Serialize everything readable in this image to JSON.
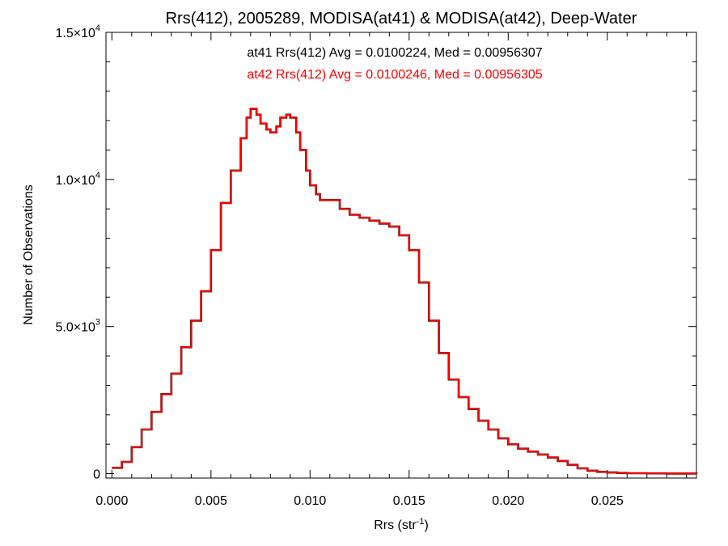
{
  "chart_data": {
    "type": "histogram",
    "title": "Rrs(412), 2005289, MODISA(at41) & MODISA(at42), Deep-Water",
    "xlabel": "Rrs (str",
    "xlabel_sup": "-1",
    "xlabel_suffix": ")",
    "ylabel": "Number of Observations",
    "xlim": [
      -0.0003,
      0.0295
    ],
    "ylim": [
      -150,
      15000
    ],
    "x_ticks": [
      {
        "value": 0.0,
        "label": "0.000"
      },
      {
        "value": 0.005,
        "label": "0.005"
      },
      {
        "value": 0.01,
        "label": "0.010"
      },
      {
        "value": 0.015,
        "label": "0.015"
      },
      {
        "value": 0.02,
        "label": "0.020"
      },
      {
        "value": 0.025,
        "label": "0.025"
      }
    ],
    "y_ticks": [
      {
        "value": 0,
        "mant": "0",
        "exp": ""
      },
      {
        "value": 5000,
        "mant": "5.0×10",
        "exp": "3"
      },
      {
        "value": 10000,
        "mant": "1.0×10",
        "exp": "4"
      },
      {
        "value": 15000,
        "mant": "1.5×10",
        "exp": "4"
      }
    ],
    "annotations": [
      {
        "text": "at41 Rrs(412) Avg = 0.0100224, Med = 0.00956307",
        "color": "#000000"
      },
      {
        "text": "at42 Rrs(412) Avg = 0.0100246, Med = 0.00956305",
        "color": "#ff0000"
      }
    ],
    "series": [
      {
        "color": "#000000",
        "x": [
          0.0,
          0.0005,
          0.001,
          0.0015,
          0.002,
          0.0025,
          0.003,
          0.0035,
          0.004,
          0.0045,
          0.005,
          0.0055,
          0.006,
          0.0065,
          0.0068,
          0.007,
          0.0073,
          0.0075,
          0.0078,
          0.008,
          0.0083,
          0.0085,
          0.0088,
          0.009,
          0.0093,
          0.0095,
          0.0098,
          0.01,
          0.0103,
          0.0105,
          0.011,
          0.0115,
          0.012,
          0.0125,
          0.013,
          0.0135,
          0.014,
          0.0145,
          0.015,
          0.0155,
          0.016,
          0.0165,
          0.017,
          0.0175,
          0.018,
          0.0185,
          0.019,
          0.0195,
          0.02,
          0.0205,
          0.021,
          0.0215,
          0.022,
          0.0225,
          0.023,
          0.0235,
          0.024,
          0.0245,
          0.025,
          0.0255,
          0.026,
          0.027,
          0.028,
          0.029,
          0.0295
        ],
        "y": [
          200,
          400,
          900,
          1500,
          2100,
          2700,
          3400,
          4300,
          5200,
          6200,
          7600,
          9200,
          10300,
          11400,
          12100,
          12400,
          12200,
          11900,
          11700,
          11600,
          11800,
          12100,
          12200,
          12100,
          11600,
          11000,
          10300,
          9800,
          9500,
          9300,
          9300,
          9000,
          8800,
          8700,
          8600,
          8500,
          8400,
          8100,
          7600,
          6500,
          5200,
          4100,
          3200,
          2600,
          2200,
          1800,
          1500,
          1200,
          1000,
          850,
          750,
          650,
          550,
          430,
          300,
          180,
          100,
          60,
          40,
          25,
          15,
          8,
          4,
          2,
          0
        ]
      },
      {
        "color": "#ff0000",
        "x": [
          0.0,
          0.0005,
          0.001,
          0.0015,
          0.002,
          0.0025,
          0.003,
          0.0035,
          0.004,
          0.0045,
          0.005,
          0.0055,
          0.006,
          0.0065,
          0.0068,
          0.007,
          0.0073,
          0.0075,
          0.0078,
          0.008,
          0.0083,
          0.0085,
          0.0088,
          0.009,
          0.0093,
          0.0095,
          0.0098,
          0.01,
          0.0103,
          0.0105,
          0.011,
          0.0115,
          0.012,
          0.0125,
          0.013,
          0.0135,
          0.014,
          0.0145,
          0.015,
          0.0155,
          0.016,
          0.0165,
          0.017,
          0.0175,
          0.018,
          0.0185,
          0.019,
          0.0195,
          0.02,
          0.0205,
          0.021,
          0.0215,
          0.022,
          0.0225,
          0.023,
          0.0235,
          0.024,
          0.0245,
          0.025,
          0.0255,
          0.026,
          0.027,
          0.028,
          0.029,
          0.0295
        ],
        "y": [
          200,
          400,
          900,
          1500,
          2100,
          2700,
          3400,
          4300,
          5200,
          6200,
          7600,
          9200,
          10300,
          11400,
          12100,
          12400,
          12200,
          11900,
          11700,
          11600,
          11800,
          12100,
          12200,
          12100,
          11600,
          11000,
          10300,
          9800,
          9500,
          9300,
          9300,
          9000,
          8800,
          8700,
          8600,
          8500,
          8400,
          8100,
          7600,
          6500,
          5200,
          4100,
          3200,
          2600,
          2200,
          1800,
          1500,
          1200,
          1000,
          850,
          750,
          650,
          550,
          430,
          300,
          180,
          100,
          60,
          40,
          25,
          15,
          8,
          4,
          2,
          0
        ]
      }
    ]
  }
}
